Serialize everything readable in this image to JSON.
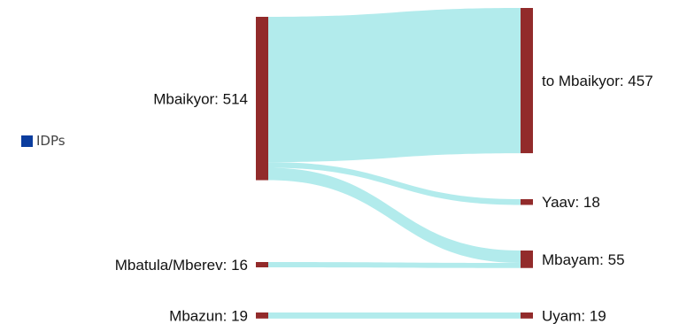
{
  "legend": {
    "label": "IDPs",
    "color": "#0b3d9e"
  },
  "chart_data": {
    "type": "sankey",
    "title": "",
    "node_color": "#922b2b",
    "link_color": "#b2ebec",
    "sources": [
      {
        "name": "Mbaikyor",
        "value": 514,
        "label": "Mbaikyor: 514"
      },
      {
        "name": "Mbatula/Mberev",
        "value": 16,
        "label": "Mbatula/Mberev: 16"
      },
      {
        "name": "Mbazun",
        "value": 19,
        "label": "Mbazun: 19"
      }
    ],
    "targets": [
      {
        "name": "to Mbaikyor",
        "value": 457,
        "label": "to Mbaikyor: 457"
      },
      {
        "name": "Yaav",
        "value": 18,
        "label": "Yaav: 18"
      },
      {
        "name": "Mbayam",
        "value": 55,
        "label": "Mbayam: 55"
      },
      {
        "name": "Uyam",
        "value": 19,
        "label": "Uyam: 19"
      }
    ],
    "links": [
      {
        "source": "Mbaikyor",
        "target": "to Mbaikyor",
        "value": 457
      },
      {
        "source": "Mbaikyor",
        "target": "Yaav",
        "value": 18
      },
      {
        "source": "Mbaikyor",
        "target": "Mbayam",
        "value": 39
      },
      {
        "source": "Mbatula/Mberev",
        "target": "Mbayam",
        "value": 16
      },
      {
        "source": "Mbazun",
        "target": "Uyam",
        "value": 19
      }
    ]
  }
}
